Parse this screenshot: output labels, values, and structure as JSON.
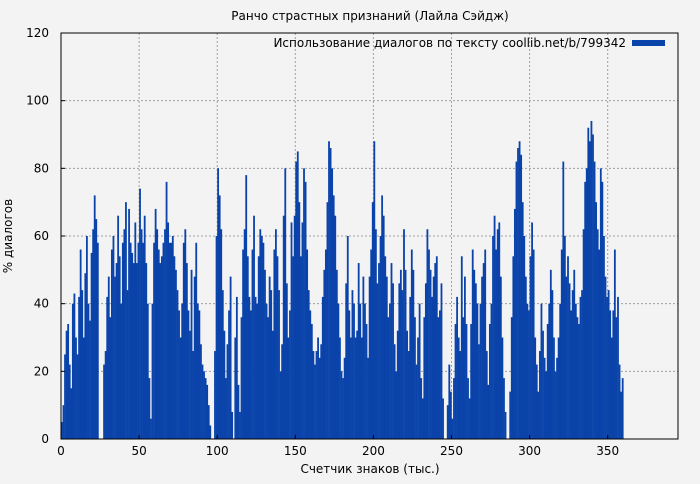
{
  "chart_data": {
    "type": "bar",
    "title": "Ранчо страстных признаний (Лайла Сэйдж)",
    "xlabel": "Счетчик знаков (тыс.)",
    "ylabel": "% диалогов",
    "xlim": [
      0,
      395
    ],
    "ylim": [
      0,
      120
    ],
    "xticks": [
      0,
      50,
      100,
      150,
      200,
      250,
      300,
      350
    ],
    "yticks": [
      0,
      20,
      40,
      60,
      80,
      100,
      120
    ],
    "grid": true,
    "legend_position": "top-right",
    "series": [
      {
        "name": "Использование диалогов по тексту coollib.net/b/799342",
        "color": "#0a43aa",
        "x_start": 0.5,
        "x_step": 1,
        "values": [
          5,
          10,
          25,
          32,
          34,
          22,
          15,
          40,
          43,
          30,
          25,
          42,
          56,
          44,
          30,
          49,
          60,
          40,
          35,
          55,
          62,
          72,
          65,
          58,
          0,
          0,
          0,
          22,
          26,
          42,
          48,
          36,
          56,
          60,
          48,
          52,
          66,
          54,
          40,
          58,
          62,
          70,
          44,
          68,
          58,
          55,
          52,
          64,
          52,
          58,
          74,
          62,
          58,
          66,
          52,
          40,
          18,
          6,
          40,
          58,
          68,
          62,
          56,
          52,
          54,
          58,
          62,
          76,
          64,
          58,
          58,
          60,
          54,
          50,
          44,
          38,
          30,
          40,
          58,
          62,
          52,
          38,
          32,
          50,
          26,
          48,
          58,
          40,
          38,
          28,
          22,
          20,
          18,
          16,
          10,
          4,
          0,
          0,
          26,
          60,
          80,
          72,
          62,
          44,
          32,
          18,
          28,
          38,
          48,
          8,
          0,
          30,
          42,
          16,
          8,
          36,
          56,
          62,
          78,
          54,
          42,
          38,
          56,
          66,
          42,
          40,
          54,
          62,
          60,
          58,
          50,
          40,
          36,
          48,
          44,
          32,
          56,
          62,
          54,
          44,
          20,
          28,
          66,
          80,
          46,
          30,
          38,
          64,
          54,
          66,
          82,
          85,
          70,
          54,
          64,
          80,
          76,
          56,
          44,
          38,
          34,
          26,
          22,
          26,
          30,
          24,
          28,
          42,
          50,
          56,
          70,
          88,
          86,
          80,
          72,
          66,
          50,
          40,
          30,
          20,
          18,
          24,
          46,
          60,
          38,
          30,
          44,
          40,
          30,
          32,
          52,
          40,
          30,
          48,
          40,
          34,
          24,
          48,
          56,
          70,
          88,
          62,
          46,
          52,
          60,
          72,
          66,
          54,
          48,
          36,
          40,
          52,
          46,
          28,
          20,
          32,
          46,
          50,
          44,
          62,
          50,
          32,
          26,
          42,
          56,
          50,
          36,
          22,
          30,
          40,
          18,
          12,
          36,
          46,
          62,
          56,
          50,
          42,
          48,
          52,
          54,
          36,
          38,
          46,
          12,
          0,
          0,
          10,
          22,
          14,
          6,
          18,
          34,
          42,
          30,
          26,
          54,
          36,
          48,
          34,
          18,
          12,
          34,
          56,
          50,
          46,
          40,
          28,
          40,
          48,
          52,
          56,
          26,
          16,
          34,
          40,
          60,
          66,
          56,
          62,
          64,
          48,
          30,
          18,
          8,
          0,
          0,
          14,
          36,
          54,
          68,
          82,
          86,
          88,
          84,
          70,
          60,
          48,
          40,
          38,
          54,
          64,
          56,
          30,
          22,
          14,
          26,
          40,
          32,
          24,
          20,
          34,
          40,
          50,
          44,
          30,
          20,
          24,
          30,
          40,
          56,
          82,
          60,
          48,
          54,
          46,
          38,
          44,
          50,
          40,
          36,
          34,
          42,
          44,
          62,
          76,
          80,
          92,
          88,
          94,
          90,
          82,
          70,
          62,
          56,
          80,
          76,
          60,
          48,
          42,
          44,
          38,
          30,
          38,
          56,
          36,
          42,
          22,
          14,
          18
        ]
      }
    ]
  }
}
